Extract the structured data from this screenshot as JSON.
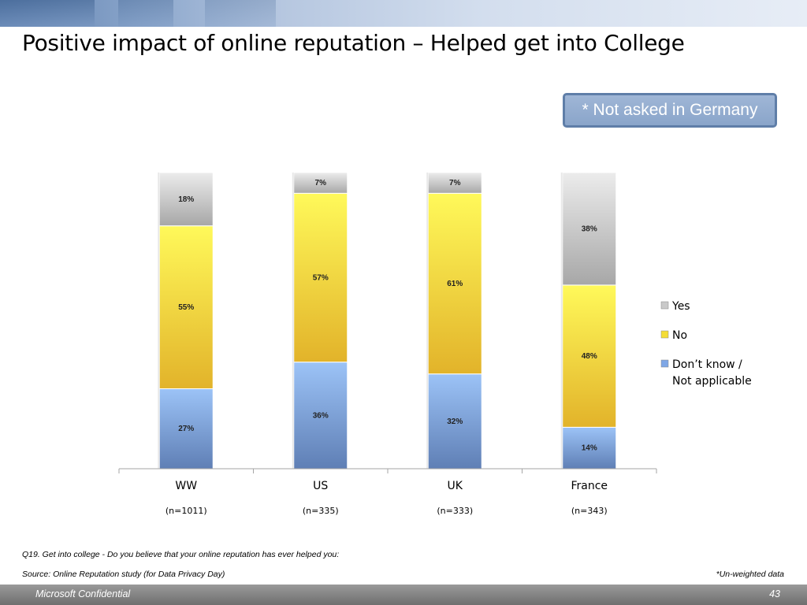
{
  "slide": {
    "title": "Positive impact of online reputation – Helped get into College",
    "note": "* Not asked in Germany",
    "question": "Q19. Get into college - Do you believe that your online reputation has ever helped you:",
    "source": "Source: Online Reputation study (for Data Privacy Day)",
    "weighting_note": "*Un-weighted data",
    "footer_left": "Microsoft Confidential",
    "page_number": "43"
  },
  "chart_data": {
    "type": "bar",
    "stacked": true,
    "percent_stacked": true,
    "title": "",
    "xlabel": "",
    "ylabel": "",
    "categories": [
      "WW",
      "US",
      "UK",
      "France"
    ],
    "sample_sizes": [
      "(n=1011)",
      "(n=335)",
      "(n=333)",
      "(n=343)"
    ],
    "series": [
      {
        "name": "Don’t know / Not applicable",
        "values": [
          27,
          36,
          32,
          14
        ],
        "color": "#7ea7e6"
      },
      {
        "name": "No",
        "values": [
          55,
          57,
          61,
          48
        ],
        "color": "#f4dd36"
      },
      {
        "name": "Yes",
        "values": [
          18,
          7,
          7,
          38
        ],
        "color": "#c9c9c9"
      }
    ],
    "data_labels": [
      [
        "27%",
        "36%",
        "32%",
        "14%"
      ],
      [
        "55%",
        "57%",
        "61%",
        "48%"
      ],
      [
        "18%",
        "7%",
        "7%",
        "38%"
      ]
    ],
    "legend_order": [
      "Yes",
      "No",
      "Don’t know / Not applicable"
    ],
    "legend_position": "right",
    "ylim": [
      0,
      100
    ],
    "grid": false,
    "y_axis_visible": false
  }
}
